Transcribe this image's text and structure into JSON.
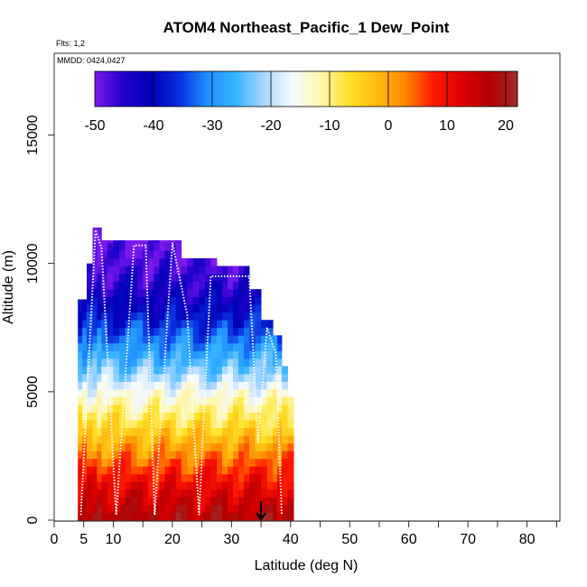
{
  "chart_data": {
    "type": "heatmap",
    "title": "ATOM4 Northeast_Pacific_1 Dew_Point",
    "annotations": {
      "flights": "Flts: 1,2",
      "dates": "MMDD: 0424,0427"
    },
    "xlabel": "Latitude (deg N)",
    "ylabel": "Altitude (m)",
    "xlim": [
      0,
      85
    ],
    "ylim": [
      0,
      18000
    ],
    "x_ticks": [
      0,
      5,
      10,
      20,
      30,
      40,
      50,
      60,
      70,
      80
    ],
    "x_minor_ticks": [
      15,
      25,
      35,
      45,
      55,
      65,
      75,
      85
    ],
    "y_ticks": [
      0,
      5000,
      10000,
      15000
    ],
    "colorbar": {
      "min": -50,
      "max": 22,
      "ticks": [
        -50,
        -40,
        -30,
        -20,
        -10,
        0,
        10,
        20
      ],
      "placement": "top-inside",
      "colors": [
        "#7a18ee",
        "#2200cc",
        "#0000b4",
        "#0a2ee0",
        "#1e90ff",
        "#36b3ff",
        "#a8d6ff",
        "#f4fbff",
        "#fff6b0",
        "#ffe227",
        "#ffbb10",
        "#ff8800",
        "#ff1a00",
        "#e00000",
        "#b00000",
        "#a52a2a"
      ]
    },
    "profile_bounds": [
      {
        "lat_min": 4.0,
        "lat_max": 5.5,
        "alt_max": 8600
      },
      {
        "lat_min": 5.5,
        "lat_max": 6.5,
        "alt_max": 10000
      },
      {
        "lat_min": 6.5,
        "lat_max": 8.0,
        "alt_max": 11400
      },
      {
        "lat_min": 8.0,
        "lat_max": 15.0,
        "alt_max": 10900
      },
      {
        "lat_min": 15.0,
        "lat_max": 21.5,
        "alt_max": 10900
      },
      {
        "lat_min": 21.5,
        "lat_max": 27.5,
        "alt_max": 10200
      },
      {
        "lat_min": 27.5,
        "lat_max": 33.0,
        "alt_max": 9900
      },
      {
        "lat_min": 33.0,
        "lat_max": 35.0,
        "alt_max": 9000
      },
      {
        "lat_min": 35.0,
        "lat_max": 37.0,
        "alt_max": 7800
      },
      {
        "lat_min": 37.0,
        "lat_max": 38.5,
        "alt_max": 7200
      },
      {
        "lat_min": 38.5,
        "lat_max": 39.5,
        "alt_max": 6000
      },
      {
        "lat_min": 39.5,
        "lat_max": 40.5,
        "alt_max": 4800
      }
    ],
    "dewpoint_by_altitude": [
      {
        "alt": 0,
        "value": 18
      },
      {
        "alt": 600,
        "value": 15
      },
      {
        "alt": 1200,
        "value": 12
      },
      {
        "alt": 1800,
        "value": 8
      },
      {
        "alt": 2500,
        "value": 3
      },
      {
        "alt": 3200,
        "value": -2
      },
      {
        "alt": 3800,
        "value": -7
      },
      {
        "alt": 4400,
        "value": -11
      },
      {
        "alt": 5000,
        "value": -15
      },
      {
        "alt": 5600,
        "value": -21
      },
      {
        "alt": 6200,
        "value": -26
      },
      {
        "alt": 6800,
        "value": -30
      },
      {
        "alt": 7500,
        "value": -35
      },
      {
        "alt": 8200,
        "value": -40
      },
      {
        "alt": 9000,
        "value": -44
      },
      {
        "alt": 9800,
        "value": -47
      },
      {
        "alt": 10600,
        "value": -49
      },
      {
        "alt": 11400,
        "value": -51
      }
    ],
    "flight_track": [
      [
        4.5,
        200
      ],
      [
        7.0,
        11300
      ],
      [
        8.0,
        10600
      ],
      [
        10.5,
        200
      ],
      [
        13.5,
        10700
      ],
      [
        15.5,
        10700
      ],
      [
        17.0,
        200
      ],
      [
        20.0,
        10800
      ],
      [
        22.5,
        8000
      ],
      [
        24.5,
        200
      ],
      [
        26.5,
        9500
      ],
      [
        28.0,
        9500
      ],
      [
        33.0,
        9500
      ],
      [
        34.5,
        3000
      ],
      [
        35.0,
        4500
      ],
      [
        36.0,
        7500
      ],
      [
        37.5,
        6500
      ],
      [
        38.5,
        200
      ]
    ],
    "arrow_marker": {
      "lat": 35.0,
      "alt_top": 750,
      "alt_bottom": 0
    }
  }
}
